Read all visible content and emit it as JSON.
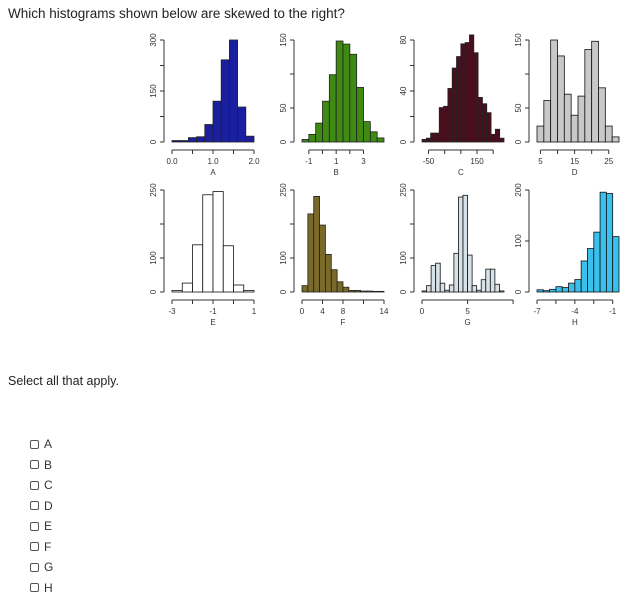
{
  "question": "Which histograms shown below are skewed to the right?",
  "instructions": "Select all that apply.",
  "options": [
    {
      "label": "A",
      "checked": false
    },
    {
      "label": "B",
      "checked": false
    },
    {
      "label": "C",
      "checked": false
    },
    {
      "label": "D",
      "checked": false
    },
    {
      "label": "E",
      "checked": false
    },
    {
      "label": "F",
      "checked": false
    },
    {
      "label": "G",
      "checked": false
    },
    {
      "label": "H",
      "checked": false
    }
  ],
  "chart_data": [
    {
      "type": "bar",
      "title": "",
      "xlabel": "A",
      "ylabel": "",
      "color": "#1a1fa0",
      "x_ticks": [
        "0.0",
        "",
        "1.0",
        "",
        "2.0"
      ],
      "x_range": [
        0.0,
        2.0
      ],
      "y_ticks": [
        "0",
        "",
        "150",
        "",
        "300"
      ],
      "y_range": [
        0,
        350
      ],
      "bin_edges": [
        0.0,
        0.2,
        0.4,
        0.6,
        0.8,
        1.0,
        1.2,
        1.4,
        1.6,
        1.8,
        2.0
      ],
      "values": [
        5,
        5,
        15,
        18,
        60,
        140,
        282,
        350,
        120,
        20
      ]
    },
    {
      "type": "bar",
      "title": "",
      "xlabel": "B",
      "ylabel": "",
      "color": "#3f8a12",
      "x_ticks": [
        "-1",
        "",
        "1",
        "",
        "3"
      ],
      "x_range": [
        -1,
        3
      ],
      "y_ticks": [
        "0",
        "50",
        "",
        "150"
      ],
      "y_range": [
        0,
        200
      ],
      "bin_edges": [
        -1.5,
        -1.0,
        -0.5,
        0.0,
        0.5,
        1.0,
        1.5,
        2.0,
        2.5,
        3.0,
        3.5,
        4.0,
        4.5
      ],
      "values": [
        5,
        15,
        37,
        80,
        132,
        198,
        192,
        172,
        107,
        40,
        20,
        8
      ]
    },
    {
      "type": "bar",
      "title": "",
      "xlabel": "C",
      "ylabel": "",
      "color": "#4a0f1e",
      "x_ticks": [
        "-50",
        "",
        "",
        "150",
        ""
      ],
      "x_range": [
        -50,
        250
      ],
      "y_ticks": [
        "0",
        "",
        "40",
        "",
        "80"
      ],
      "y_range": [
        0,
        80
      ],
      "bin_edges": [
        -80,
        -60,
        -40,
        -20,
        0,
        20,
        40,
        60,
        80,
        100,
        120,
        140,
        160,
        180,
        200,
        220,
        240,
        260,
        280,
        300
      ],
      "values": [
        2,
        3,
        7,
        7,
        27,
        28,
        42,
        58,
        67,
        77,
        78,
        84,
        70,
        35,
        30,
        23,
        6,
        10,
        3
      ]
    },
    {
      "type": "bar",
      "title": "",
      "xlabel": "D",
      "ylabel": "",
      "color": "#c8c8c8",
      "x_ticks": [
        "5",
        "",
        "15",
        "",
        "25"
      ],
      "x_range": [
        5,
        25
      ],
      "y_ticks": [
        "0",
        "50",
        "",
        "150"
      ],
      "y_range": [
        0,
        160
      ],
      "bin_edges": [
        4,
        6,
        8,
        10,
        12,
        14,
        16,
        18,
        20,
        22,
        24,
        26,
        28
      ],
      "values": [
        25,
        65,
        160,
        135,
        75,
        42,
        72,
        145,
        158,
        85,
        25,
        8
      ]
    },
    {
      "type": "bar",
      "title": "",
      "xlabel": "E",
      "ylabel": "",
      "color": "#ffffff",
      "x_ticks": [
        "-3",
        "",
        "-1",
        "",
        "1"
      ],
      "x_range": [
        -3,
        1
      ],
      "y_ticks": [
        "0",
        "100",
        "",
        "250"
      ],
      "y_range": [
        0,
        320
      ],
      "bin_edges": [
        -3.0,
        -2.5,
        -2.0,
        -1.5,
        -1.0,
        -0.5,
        0.0,
        0.5,
        1.0
      ],
      "values": [
        5,
        28,
        148,
        305,
        315,
        145,
        22,
        5
      ]
    },
    {
      "type": "bar",
      "title": "",
      "xlabel": "F",
      "ylabel": "",
      "color": "#7a6a2a",
      "x_ticks": [
        "0",
        "4",
        "8",
        "",
        "14"
      ],
      "x_range": [
        0,
        14
      ],
      "y_ticks": [
        "0",
        "100",
        "",
        "250"
      ],
      "y_range": [
        0,
        320
      ],
      "bin_edges": [
        0,
        1,
        2,
        3,
        4,
        5,
        6,
        7,
        8,
        9,
        10,
        11,
        12,
        13,
        14
      ],
      "values": [
        20,
        245,
        300,
        210,
        118,
        70,
        32,
        15,
        5,
        5,
        3,
        3,
        2,
        2
      ]
    },
    {
      "type": "bar",
      "title": "",
      "xlabel": "G",
      "ylabel": "",
      "color": "#d6e2e8",
      "x_ticks": [
        "0",
        "5",
        ""
      ],
      "x_range": [
        -5,
        15
      ],
      "y_ticks": [
        "0",
        "100",
        "",
        "250"
      ],
      "y_range": [
        0,
        290
      ],
      "bin_edges": [
        -5,
        -4,
        -3,
        -2,
        -1,
        0,
        1,
        2,
        3,
        4,
        5,
        6,
        7,
        8,
        9,
        10,
        11,
        12,
        13
      ],
      "values": [
        3,
        18,
        75,
        82,
        25,
        5,
        20,
        110,
        270,
        275,
        105,
        18,
        5,
        35,
        65,
        65,
        22,
        3
      ]
    },
    {
      "type": "bar",
      "title": "",
      "xlabel": "H",
      "ylabel": "",
      "color": "#39c0ec",
      "x_ticks": [
        "-7",
        "",
        "-4",
        "",
        "-1"
      ],
      "x_range": [
        -7,
        -1
      ],
      "y_ticks": [
        "0",
        "100",
        "200"
      ],
      "y_range": [
        0,
        230
      ],
      "bin_edges": [
        -7.0,
        -6.5,
        -6.0,
        -5.5,
        -5.0,
        -4.5,
        -4.0,
        -3.5,
        -3.0,
        -2.5,
        -2.0,
        -1.5,
        -1.0,
        -0.5
      ],
      "values": [
        5,
        3,
        6,
        12,
        10,
        20,
        28,
        70,
        98,
        135,
        225,
        222,
        125,
        15
      ]
    }
  ]
}
